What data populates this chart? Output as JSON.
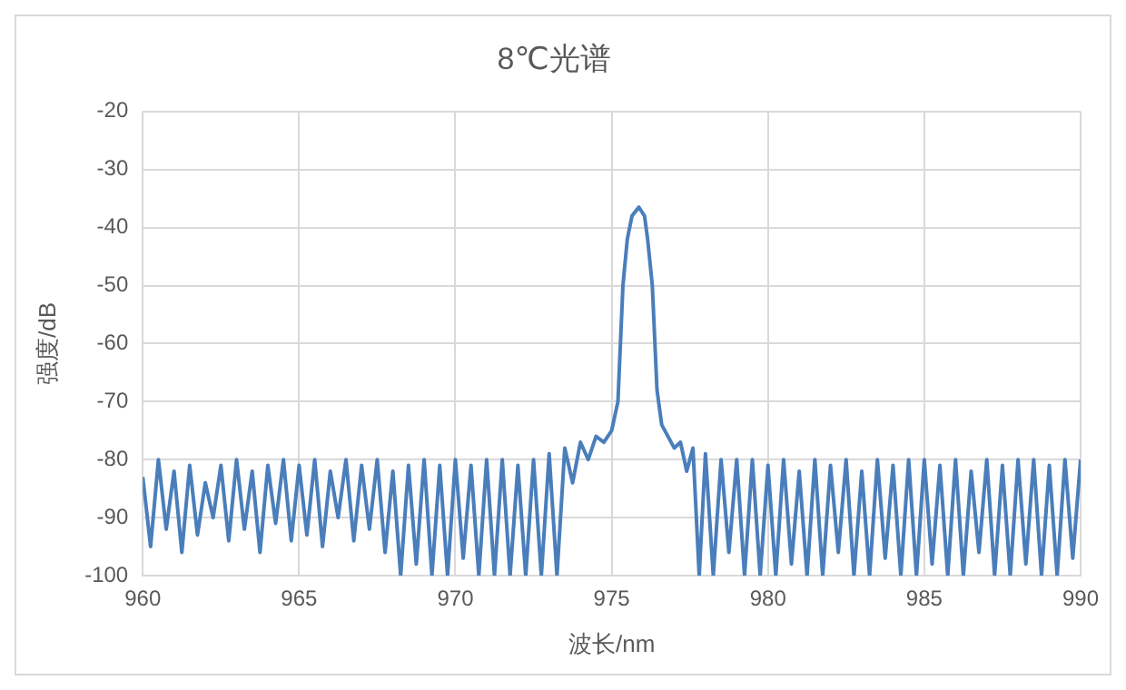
{
  "chart_data": {
    "type": "line",
    "title": "8℃光谱",
    "xlabel": "波长/nm",
    "ylabel": "强度/dB",
    "x": [
      960,
      960.25,
      960.5,
      960.75,
      961,
      961.25,
      961.5,
      961.75,
      962,
      962.25,
      962.5,
      962.75,
      963,
      963.25,
      963.5,
      963.75,
      964,
      964.25,
      964.5,
      964.75,
      965,
      965.25,
      965.5,
      965.75,
      966,
      966.25,
      966.5,
      966.75,
      967,
      967.25,
      967.5,
      967.75,
      968,
      968.25,
      968.5,
      968.75,
      969,
      969.25,
      969.5,
      969.75,
      970,
      970.25,
      970.5,
      970.75,
      971,
      971.25,
      971.5,
      971.75,
      972,
      972.25,
      972.5,
      972.75,
      973,
      973.25,
      973.5,
      973.75,
      974,
      974.25,
      974.5,
      974.75,
      975,
      975.2,
      975.36,
      975.5,
      975.65,
      975.87,
      976.05,
      976.15,
      976.3,
      976.45,
      976.6,
      976.8,
      977,
      977.2,
      977.4,
      977.6,
      977.8,
      978,
      978.25,
      978.5,
      978.75,
      979,
      979.25,
      979.5,
      979.75,
      980,
      980.25,
      980.5,
      980.75,
      981,
      981.25,
      981.5,
      981.75,
      982,
      982.25,
      982.5,
      982.75,
      983,
      983.25,
      983.5,
      983.75,
      984,
      984.25,
      984.5,
      984.75,
      985,
      985.25,
      985.5,
      985.75,
      986,
      986.25,
      986.5,
      986.75,
      987,
      987.25,
      987.5,
      987.75,
      988,
      988.25,
      988.5,
      988.75,
      989,
      989.25,
      989.5,
      989.75,
      990
    ],
    "series": [
      {
        "color": "#4a7ebb",
        "values": [
          -83,
          -95,
          -80,
          -92,
          -82,
          -96,
          -81,
          -93,
          -84,
          -90,
          -81,
          -94,
          -80,
          -92,
          -82,
          -96,
          -81,
          -91,
          -80,
          -94,
          -81,
          -93,
          -80,
          -95,
          -82,
          -90,
          -80,
          -94,
          -81,
          -92,
          -80,
          -96,
          -82,
          -100,
          -81,
          -98,
          -80,
          -100,
          -81,
          -100,
          -80,
          -97,
          -81,
          -100,
          -80,
          -100,
          -80,
          -100,
          -81,
          -100,
          -80,
          -100,
          -79,
          -100,
          -78,
          -84,
          -77,
          -80,
          -76,
          -77,
          -75,
          -70,
          -50,
          -42,
          -38,
          -36.5,
          -38,
          -42,
          -50,
          -68,
          -74,
          -76,
          -78,
          -77,
          -82,
          -78,
          -100,
          -79,
          -100,
          -80,
          -96,
          -80,
          -100,
          -80,
          -100,
          -81,
          -100,
          -80,
          -98,
          -82,
          -100,
          -80,
          -100,
          -81,
          -96,
          -80,
          -100,
          -82,
          -100,
          -80,
          -97,
          -81,
          -100,
          -80,
          -100,
          -80,
          -98,
          -81,
          -100,
          -80,
          -100,
          -82,
          -96,
          -80,
          -100,
          -81,
          -100,
          -80,
          -98,
          -80,
          -100,
          -81,
          -100,
          -80,
          -97,
          -80
        ]
      }
    ],
    "xlim": [
      960,
      990
    ],
    "ylim": [
      -100,
      -20
    ],
    "xticks": [
      960,
      965,
      970,
      975,
      980,
      985,
      990
    ],
    "yticks": [
      -100,
      -90,
      -80,
      -70,
      -60,
      -50,
      -40,
      -30,
      -20
    ],
    "grid": true,
    "legend": false,
    "line_style": "solid"
  }
}
